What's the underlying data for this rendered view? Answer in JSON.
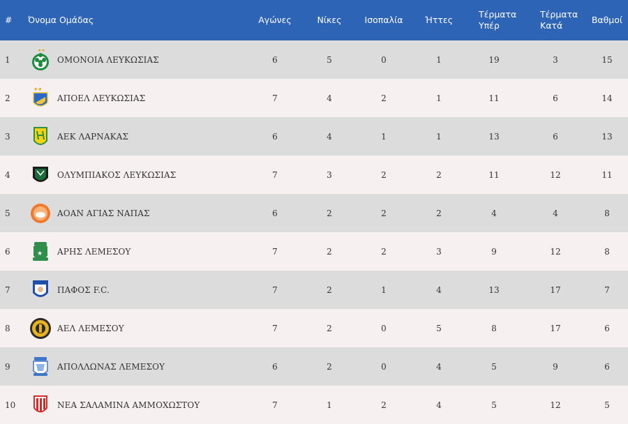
{
  "headers": {
    "rank": "#",
    "team": "Όνομα Ομάδας",
    "played": "Αγώνες",
    "wins": "Νίκες",
    "draws": "Ισοπαλία",
    "losses": "Ήττες",
    "goals_for": "Τέρματα Υπέρ",
    "goals_against": "Τέρματα Κατά",
    "points": "Βαθμοί"
  },
  "colors": {
    "header_bg": "#2d64b6",
    "row_odd": "#dcdcdc",
    "row_even": "#f7f0f0"
  },
  "rows": [
    {
      "rank": "1",
      "team": "ΟΜΟΝΟΙΑ ΛΕΥΚΩΣΙΑΣ",
      "logo": "omonoia-crest-icon",
      "played": "6",
      "wins": "5",
      "draws": "0",
      "losses": "1",
      "goals_for": "19",
      "goals_against": "3",
      "points": "15"
    },
    {
      "rank": "2",
      "team": "ΑΠΟΕΛ ΛΕΥΚΩΣΙΑΣ",
      "logo": "apoel-crest-icon",
      "played": "7",
      "wins": "4",
      "draws": "2",
      "losses": "1",
      "goals_for": "11",
      "goals_against": "6",
      "points": "14"
    },
    {
      "rank": "3",
      "team": "ΑΕΚ ΛΑΡΝΑΚΑΣ",
      "logo": "aek-crest-icon",
      "played": "6",
      "wins": "4",
      "draws": "1",
      "losses": "1",
      "goals_for": "13",
      "goals_against": "6",
      "points": "13"
    },
    {
      "rank": "4",
      "team": "ΟΛΥΜΠΙΑΚΟΣ ΛΕΥΚΩΣΙΑΣ",
      "logo": "olympiakos-crest-icon",
      "played": "7",
      "wins": "3",
      "draws": "2",
      "losses": "2",
      "goals_for": "11",
      "goals_against": "12",
      "points": "11"
    },
    {
      "rank": "5",
      "team": "ΑΟΑΝ ΑΓΙΑΣ ΝΑΠΑΣ",
      "logo": "aoan-crest-icon",
      "played": "6",
      "wins": "2",
      "draws": "2",
      "losses": "2",
      "goals_for": "4",
      "goals_against": "4",
      "points": "8"
    },
    {
      "rank": "6",
      "team": "ΑΡΗΣ ΛΕΜΕΣΟΥ",
      "logo": "aris-crest-icon",
      "played": "7",
      "wins": "2",
      "draws": "2",
      "losses": "3",
      "goals_for": "9",
      "goals_against": "12",
      "points": "8"
    },
    {
      "rank": "7",
      "team": "ΠΑΦΟΣ F.C.",
      "logo": "pafos-crest-icon",
      "played": "7",
      "wins": "2",
      "draws": "1",
      "losses": "4",
      "goals_for": "13",
      "goals_against": "17",
      "points": "7"
    },
    {
      "rank": "8",
      "team": "ΑΕΛ ΛΕΜΕΣΟΥ",
      "logo": "ael-crest-icon",
      "played": "7",
      "wins": "2",
      "draws": "0",
      "losses": "5",
      "goals_for": "8",
      "goals_against": "17",
      "points": "6"
    },
    {
      "rank": "9",
      "team": "ΑΠΟΛΛΩΝΑΣ ΛΕΜΕΣΟΥ",
      "logo": "apollon-crest-icon",
      "played": "6",
      "wins": "2",
      "draws": "0",
      "losses": "4",
      "goals_for": "5",
      "goals_against": "9",
      "points": "6"
    },
    {
      "rank": "10",
      "team": "ΝΕΑ ΣΑΛΑΜΙΝΑ ΑΜΜΟΧΩΣΤΟΥ",
      "logo": "nea-salamina-crest-icon",
      "played": "7",
      "wins": "1",
      "draws": "2",
      "losses": "4",
      "goals_for": "5",
      "goals_against": "12",
      "points": "5"
    }
  ]
}
